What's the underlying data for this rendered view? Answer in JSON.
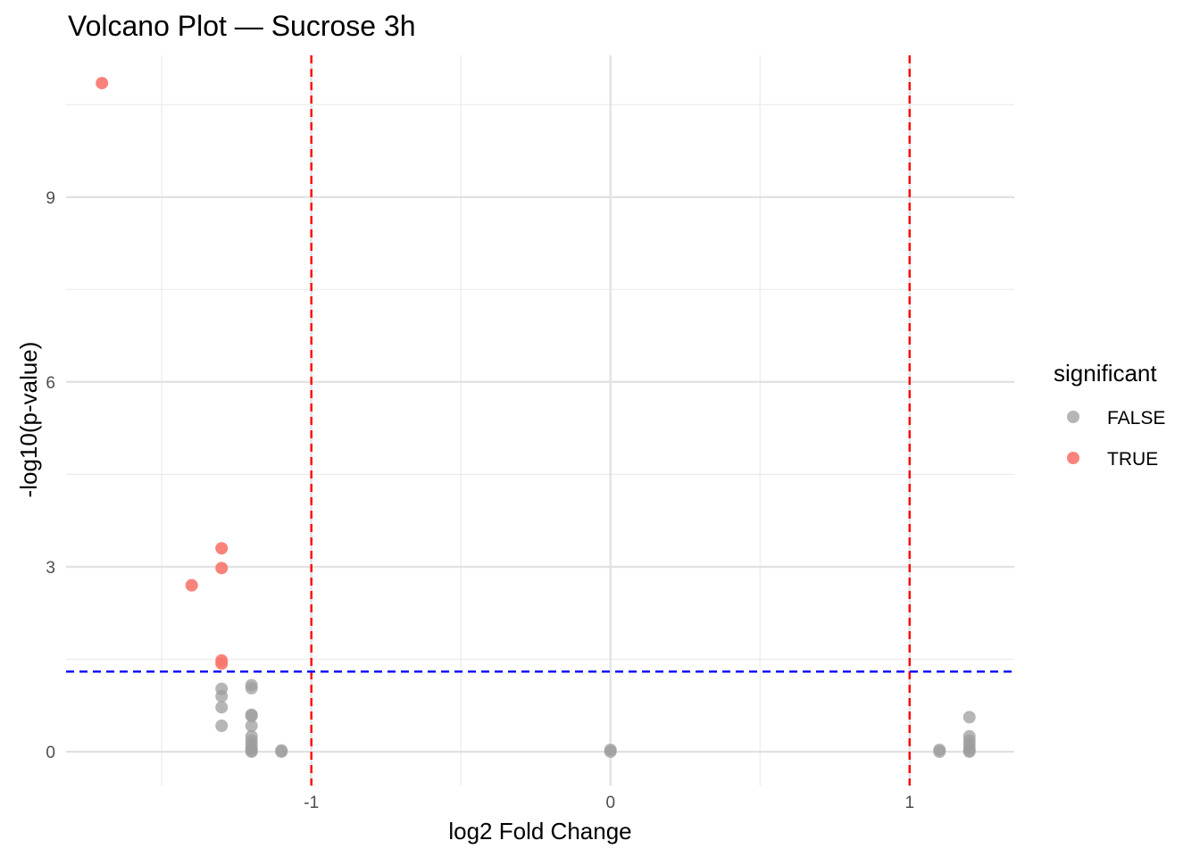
{
  "chart_data": {
    "type": "scatter",
    "title": "Volcano Plot — Sucrose 3h",
    "xlabel": "log2 Fold Change",
    "ylabel": "-log10(p-value)",
    "xlim": [
      -1.82,
      1.35
    ],
    "ylim": [
      -0.55,
      11.3
    ],
    "x_ticks": [
      -1,
      0,
      1
    ],
    "x_tick_labels": [
      "-1",
      "0",
      "1"
    ],
    "y_ticks": [
      0,
      3,
      6,
      9
    ],
    "y_tick_labels": [
      "0",
      "3",
      "6",
      "9"
    ],
    "grid": true,
    "legend": {
      "title": "significant",
      "placement": "right",
      "entries": [
        {
          "label": "FALSE",
          "color": "#9e9e9e"
        },
        {
          "label": "TRUE",
          "color": "#f8766d"
        }
      ]
    },
    "threshold_lines": [
      {
        "orientation": "vertical",
        "value": -1,
        "color": "#ff0000",
        "style": "dashed"
      },
      {
        "orientation": "vertical",
        "value": 1,
        "color": "#ff0000",
        "style": "dashed"
      },
      {
        "orientation": "horizontal",
        "value": 1.3,
        "color": "#0000ff",
        "style": "dashed"
      }
    ],
    "series": [
      {
        "name": "FALSE",
        "color": "#9e9e9e",
        "points": [
          {
            "x": -1.3,
            "y": 1.02
          },
          {
            "x": -1.3,
            "y": 0.9
          },
          {
            "x": -1.3,
            "y": 0.72
          },
          {
            "x": -1.3,
            "y": 0.42
          },
          {
            "x": -1.2,
            "y": 1.08
          },
          {
            "x": -1.2,
            "y": 1.03
          },
          {
            "x": -1.2,
            "y": 0.6
          },
          {
            "x": -1.2,
            "y": 0.58
          },
          {
            "x": -1.2,
            "y": 0.42
          },
          {
            "x": -1.2,
            "y": 0.25
          },
          {
            "x": -1.2,
            "y": 0.18
          },
          {
            "x": -1.2,
            "y": 0.12
          },
          {
            "x": -1.2,
            "y": 0.06
          },
          {
            "x": -1.2,
            "y": 0.02
          },
          {
            "x": -1.2,
            "y": 0.0
          },
          {
            "x": -1.1,
            "y": 0.02
          },
          {
            "x": -1.1,
            "y": 0.0
          },
          {
            "x": 0.0,
            "y": 0.03
          },
          {
            "x": 0.0,
            "y": 0.0
          },
          {
            "x": 1.1,
            "y": 0.03
          },
          {
            "x": 1.1,
            "y": 0.0
          },
          {
            "x": 1.2,
            "y": 0.56
          },
          {
            "x": 1.2,
            "y": 0.25
          },
          {
            "x": 1.2,
            "y": 0.18
          },
          {
            "x": 1.2,
            "y": 0.12
          },
          {
            "x": 1.2,
            "y": 0.06
          },
          {
            "x": 1.2,
            "y": 0.02
          },
          {
            "x": 1.2,
            "y": 0.0
          }
        ]
      },
      {
        "name": "TRUE",
        "color": "#f8766d",
        "points": [
          {
            "x": -1.7,
            "y": 10.85
          },
          {
            "x": -1.3,
            "y": 3.3
          },
          {
            "x": -1.3,
            "y": 2.98
          },
          {
            "x": -1.4,
            "y": 2.7
          },
          {
            "x": -1.3,
            "y": 1.48
          },
          {
            "x": -1.3,
            "y": 1.43
          }
        ]
      }
    ]
  }
}
